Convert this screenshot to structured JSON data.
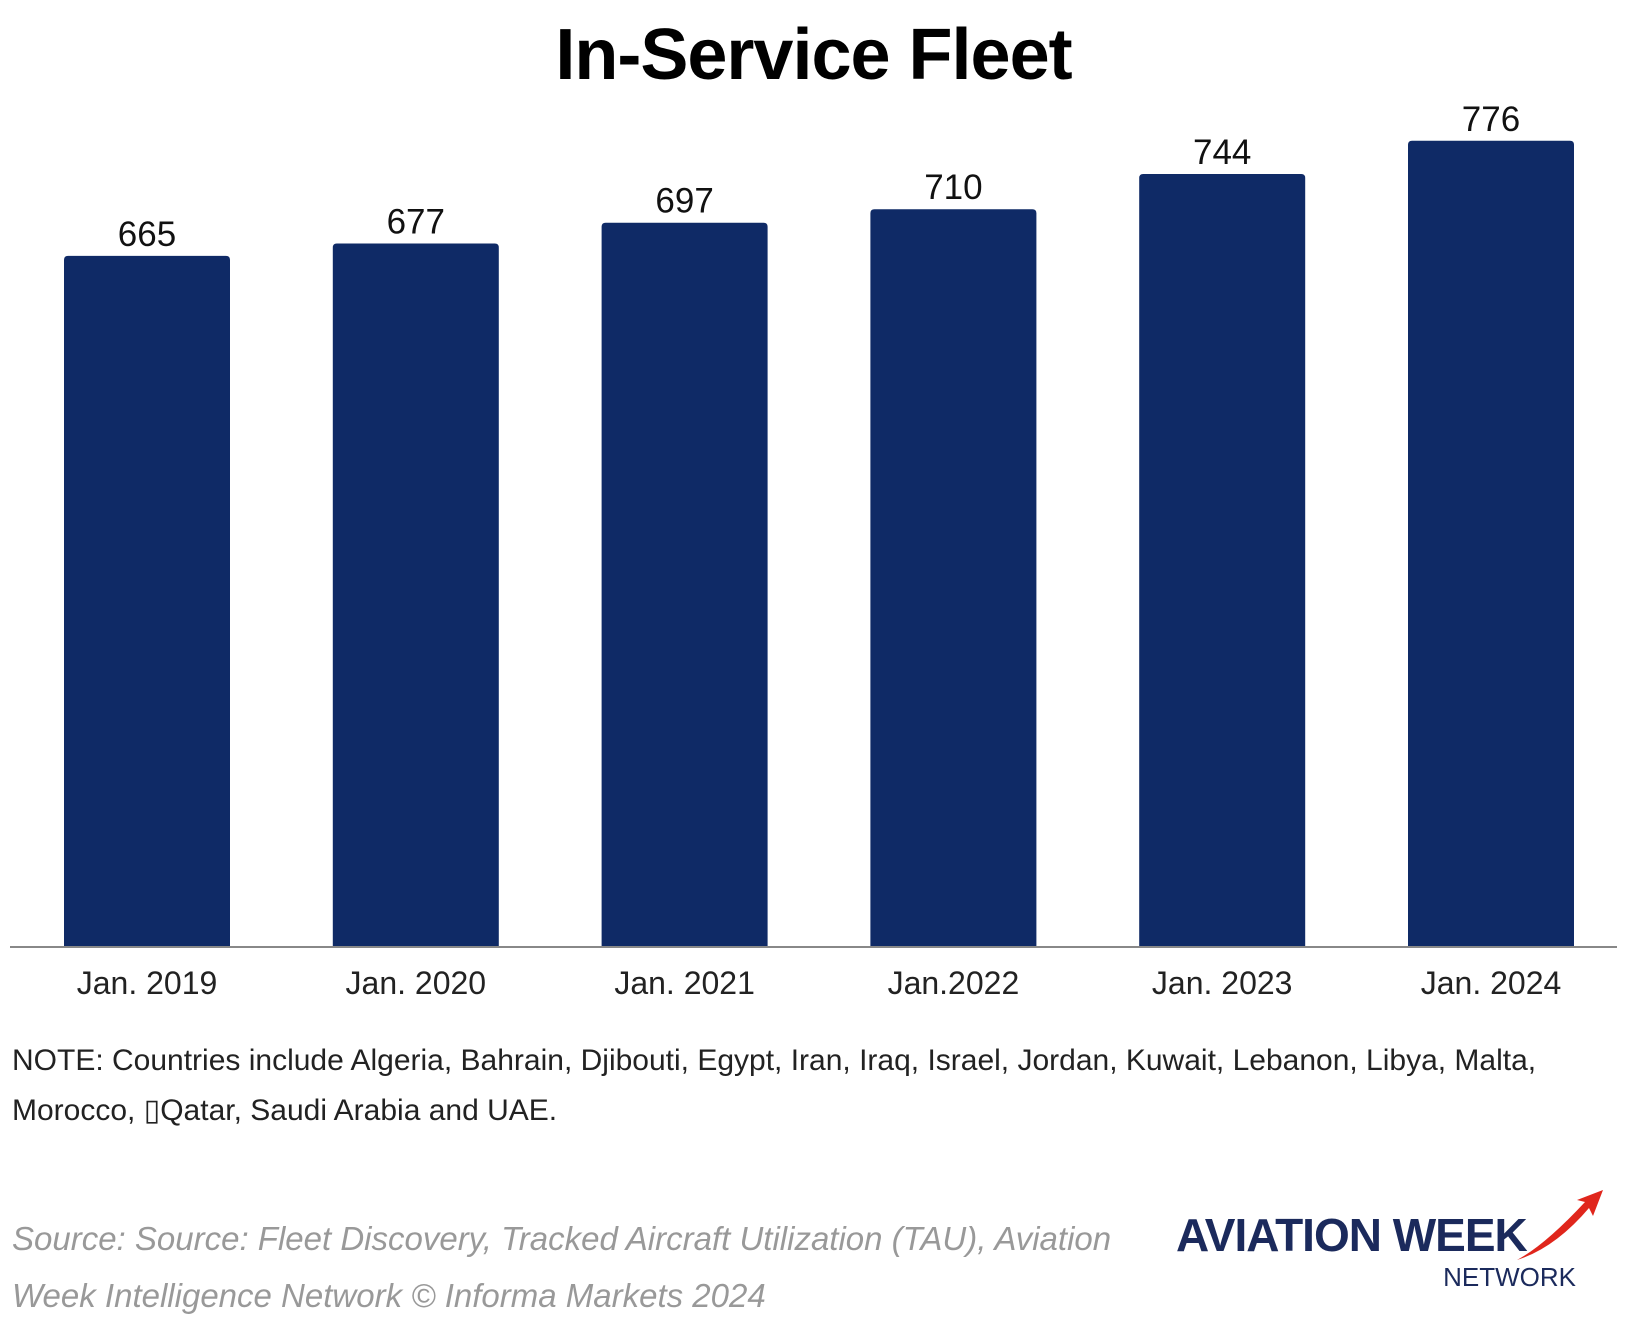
{
  "chart_data": {
    "type": "bar",
    "title": "In-Service Fleet",
    "categories": [
      "Jan. 2019",
      "Jan. 2020",
      "Jan. 2021",
      "Jan.2022",
      "Jan. 2023",
      "Jan. 2024"
    ],
    "values": [
      665,
      677,
      697,
      710,
      744,
      776
    ],
    "data_labels": [
      "665",
      "677",
      "697",
      "710",
      "744",
      "776"
    ],
    "xlabel": "",
    "ylabel": "",
    "ylim": [
      0,
      800
    ],
    "grid": false,
    "legend": "none",
    "bar_color": "#0f2a66",
    "axis_color": "#888888"
  },
  "note": "NOTE: Countries include Algeria, Bahrain, Djibouti, Egypt, Iran, Iraq, Israel, Jordan, Kuwait, Lebanon, Libya, Malta, Morocco, ▯Qatar, Saudi Arabia and UAE.",
  "source": "Source: Source: Fleet Discovery, Tracked Aircraft Utilization (TAU), Aviation Week Intelligence Network  © Informa Markets 2024",
  "logo": {
    "main": "AVIATION WEEK",
    "sub": "NETWORK",
    "swoosh_color": "#e0261c",
    "text_color": "#1b2a5c",
    "icon": "red-arrow-swoosh-icon"
  }
}
